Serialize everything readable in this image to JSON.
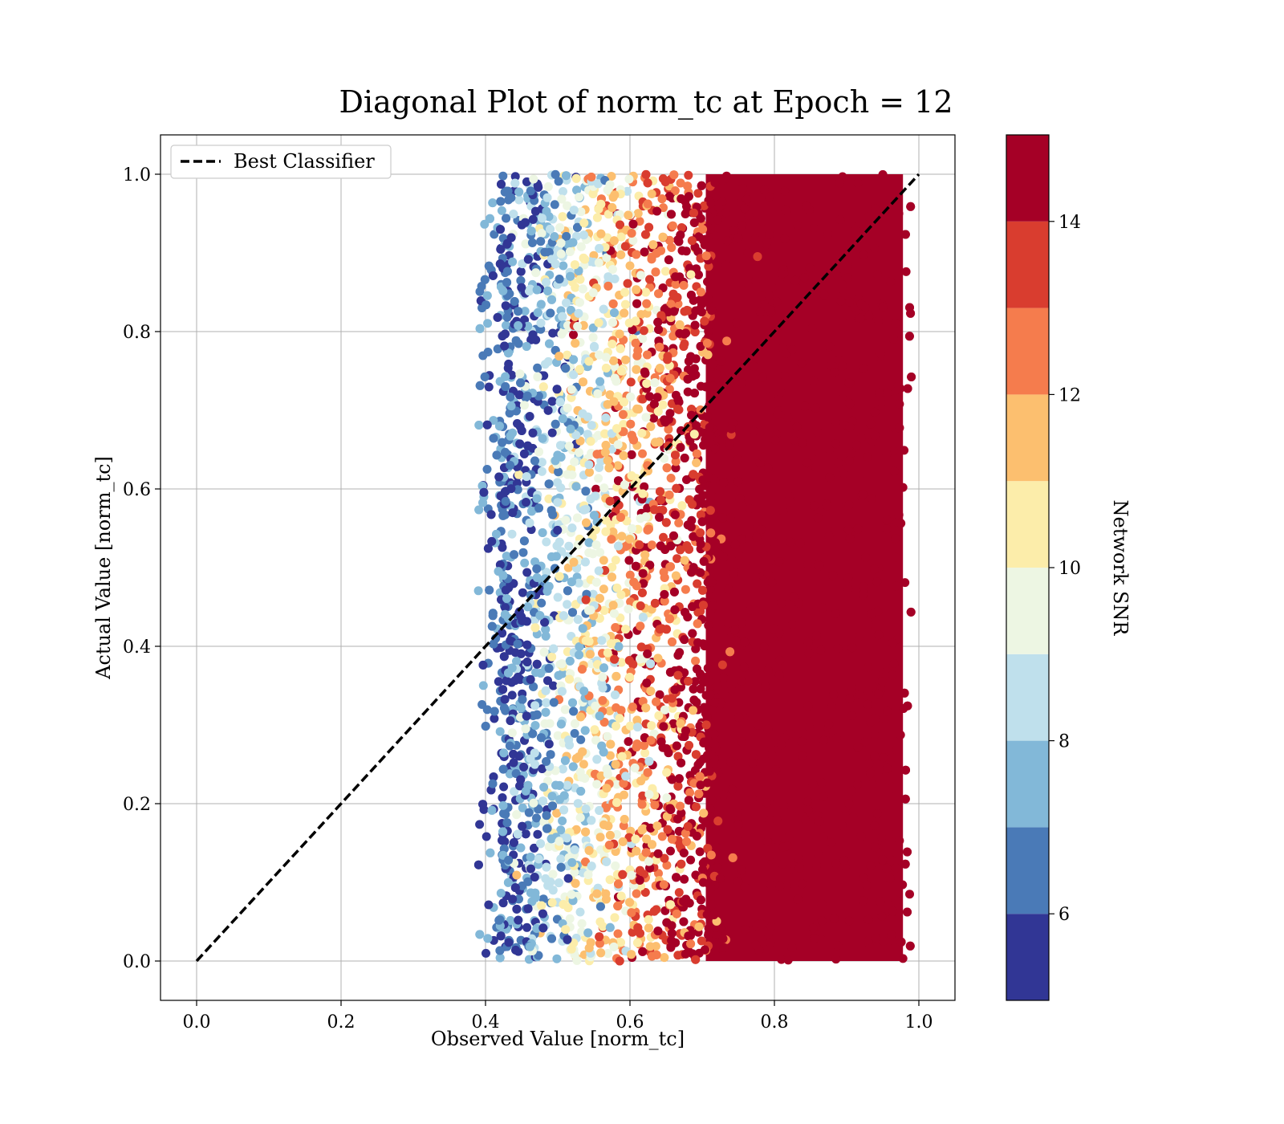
{
  "chart_data": {
    "type": "scatter",
    "title": "Diagonal Plot of norm_tc at Epoch = 12",
    "xlabel": "Observed Value [norm_tc]",
    "ylabel": "Actual Value [norm_tc]",
    "xlim": [
      -0.05,
      1.05
    ],
    "ylim": [
      -0.05,
      1.05
    ],
    "x_ticks": [
      "0.0",
      "0.2",
      "0.4",
      "0.6",
      "0.8",
      "1.0"
    ],
    "y_ticks": [
      "0.0",
      "0.2",
      "0.4",
      "0.6",
      "0.8",
      "1.0"
    ],
    "grid": true,
    "legend": {
      "placement": "top-left",
      "entries": [
        {
          "label": "Best Classifier",
          "style": "black dashed line"
        }
      ]
    },
    "reference_line": {
      "label": "Best Classifier",
      "x": [
        0.0,
        1.0
      ],
      "y": [
        0.0,
        1.0
      ],
      "color": "#000000",
      "style": "dashed"
    },
    "scatter_summary": {
      "x_range": [
        0.39,
        0.99
      ],
      "y_range": [
        0.0,
        1.0
      ],
      "color_trend": "Network SNR increases with observed value: low SNR (blue) near x=0.42, mid SNR (yellow) near x=0.55, high SNR (dark red) for x>0.7"
    },
    "colorbar": {
      "label": "Network SNR",
      "range": [
        5,
        15
      ],
      "ticks": [
        "6",
        "8",
        "10",
        "12",
        "14"
      ],
      "tick_values": [
        6,
        8,
        10,
        12,
        14
      ],
      "boundaries": [
        5,
        6,
        7,
        8,
        9,
        10,
        11,
        12,
        13,
        14,
        15
      ],
      "colors": [
        "#313695",
        "#4a7ab7",
        "#82b8d8",
        "#bfe0ec",
        "#edf6e3",
        "#fcedaa",
        "#fcbf6f",
        "#f57c4d",
        "#d93d2f",
        "#a50026"
      ]
    }
  }
}
